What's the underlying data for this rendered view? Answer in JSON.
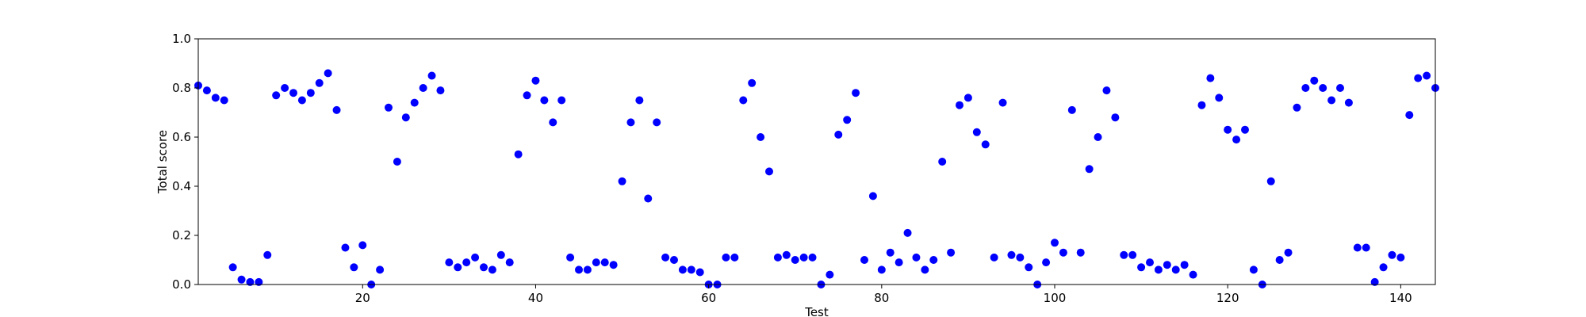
{
  "chart_data": {
    "type": "scatter",
    "title": "",
    "xlabel": "Test",
    "ylabel": "Total score",
    "xlim": [
      1,
      144
    ],
    "ylim": [
      0.0,
      1.0
    ],
    "grid": false,
    "marker_color": "#0000ff",
    "xticks": [
      20,
      40,
      60,
      80,
      100,
      120,
      140
    ],
    "yticks": [
      0.0,
      0.2,
      0.4,
      0.6,
      0.8,
      1.0
    ],
    "xtick_labels": [
      "20",
      "40",
      "60",
      "80",
      "100",
      "120",
      "140"
    ],
    "ytick_labels": [
      "0.0",
      "0.2",
      "0.4",
      "0.6",
      "0.8",
      "1.0"
    ],
    "x": [
      1,
      2,
      3,
      4,
      5,
      6,
      7,
      8,
      9,
      10,
      11,
      12,
      13,
      14,
      15,
      16,
      17,
      18,
      19,
      20,
      21,
      22,
      23,
      24,
      25,
      26,
      27,
      28,
      29,
      30,
      31,
      32,
      33,
      34,
      35,
      36,
      37,
      38,
      39,
      40,
      41,
      42,
      43,
      44,
      45,
      46,
      47,
      48,
      49,
      50,
      51,
      52,
      53,
      54,
      55,
      56,
      57,
      58,
      59,
      60,
      61,
      62,
      63,
      64,
      65,
      66,
      67,
      68,
      69,
      70,
      71,
      72,
      73,
      74,
      75,
      76,
      77,
      78,
      79,
      80,
      81,
      82,
      83,
      84,
      85,
      86,
      87,
      88,
      89,
      90,
      91,
      92,
      93,
      94,
      95,
      96,
      97,
      98,
      99,
      100,
      101,
      102,
      103,
      104,
      105,
      106,
      107,
      108,
      109,
      110,
      111,
      112,
      113,
      114,
      115,
      116,
      117,
      118,
      119,
      120,
      121,
      122,
      123,
      124,
      125,
      126,
      127,
      128,
      129,
      130,
      131,
      132,
      133,
      134,
      135,
      136,
      137,
      138,
      139,
      140,
      141,
      142,
      143,
      144
    ],
    "y": [
      0.81,
      0.79,
      0.76,
      0.75,
      0.07,
      0.02,
      0.01,
      0.01,
      0.12,
      0.77,
      0.8,
      0.78,
      0.75,
      0.78,
      0.82,
      0.86,
      0.71,
      0.15,
      0.07,
      0.16,
      0.0,
      0.06,
      0.72,
      0.5,
      0.68,
      0.74,
      0.8,
      0.85,
      0.79,
      0.09,
      0.07,
      0.09,
      0.11,
      0.07,
      0.06,
      0.12,
      0.09,
      0.53,
      0.77,
      0.83,
      0.75,
      0.66,
      0.75,
      0.11,
      0.06,
      0.06,
      0.09,
      0.09,
      0.08,
      0.42,
      0.66,
      0.75,
      0.35,
      0.66,
      0.11,
      0.1,
      0.06,
      0.06,
      0.05,
      0.0,
      0.0,
      0.11,
      0.11,
      0.75,
      0.82,
      0.6,
      0.46,
      0.11,
      0.12,
      0.1,
      0.11,
      0.11,
      0.0,
      0.04,
      0.61,
      0.67,
      0.78,
      0.1,
      0.36,
      0.06,
      0.13,
      0.09,
      0.21,
      0.11,
      0.06,
      0.1,
      0.5,
      0.13,
      0.73,
      0.76,
      0.62,
      0.57,
      0.11,
      0.74,
      0.12,
      0.11,
      0.07,
      0.0,
      0.09,
      0.17,
      0.13,
      0.71,
      0.13,
      0.47,
      0.6,
      0.79,
      0.68,
      0.12,
      0.12,
      0.07,
      0.09,
      0.06,
      0.08,
      0.06,
      0.08,
      0.04,
      0.73,
      0.84,
      0.76,
      0.63,
      0.59,
      0.63,
      0.06,
      0.0,
      0.42,
      0.1,
      0.13,
      0.72,
      0.8,
      0.83,
      0.8,
      0.75,
      0.8,
      0.74,
      0.15,
      0.15,
      0.01,
      0.07,
      0.12,
      0.11,
      0.69,
      0.84,
      0.85,
      0.8
    ]
  }
}
